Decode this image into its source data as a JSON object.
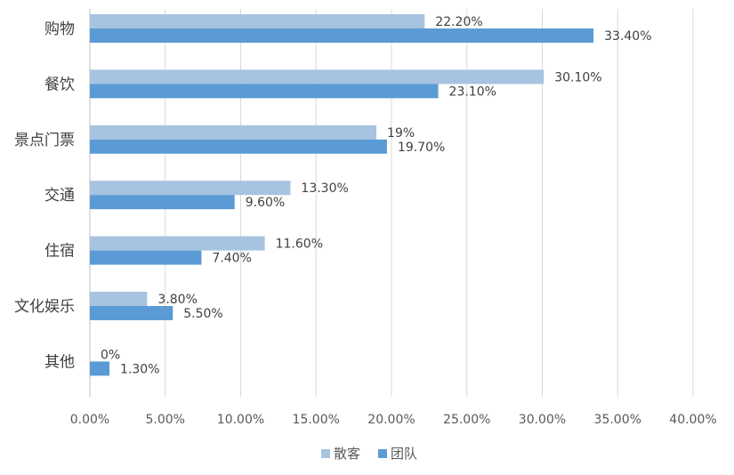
{
  "chart_data": {
    "type": "bar",
    "orientation": "horizontal",
    "categories": [
      "购物",
      "餐饮",
      "景点门票",
      "交通",
      "住宿",
      "文化娱乐",
      "其他"
    ],
    "series": [
      {
        "name": "散客",
        "color": "#a6c3e0",
        "values": [
          22.2,
          30.1,
          19,
          13.3,
          11.6,
          3.8,
          0
        ],
        "labels": [
          "22.20%",
          "30.10%",
          "19%",
          "13.30%",
          "11.60%",
          "3.80%",
          "0%"
        ]
      },
      {
        "name": "团队",
        "color": "#5b9bd5",
        "values": [
          33.4,
          23.1,
          19.7,
          9.6,
          7.4,
          5.5,
          1.3
        ],
        "labels": [
          "33.40%",
          "23.10%",
          "19.70%",
          "9.60%",
          "7.40%",
          "5.50%",
          "1.30%"
        ]
      }
    ],
    "xlim": [
      0,
      40
    ],
    "x_ticks": [
      0,
      5,
      10,
      15,
      20,
      25,
      30,
      35,
      40
    ],
    "x_tick_labels": [
      "0.00%",
      "5.00%",
      "10.00%",
      "15.00%",
      "20.00%",
      "25.00%",
      "30.00%",
      "35.00%",
      "40.00%"
    ],
    "grid": true,
    "legend_position": "bottom-center",
    "title": "",
    "xlabel": "",
    "ylabel": ""
  }
}
